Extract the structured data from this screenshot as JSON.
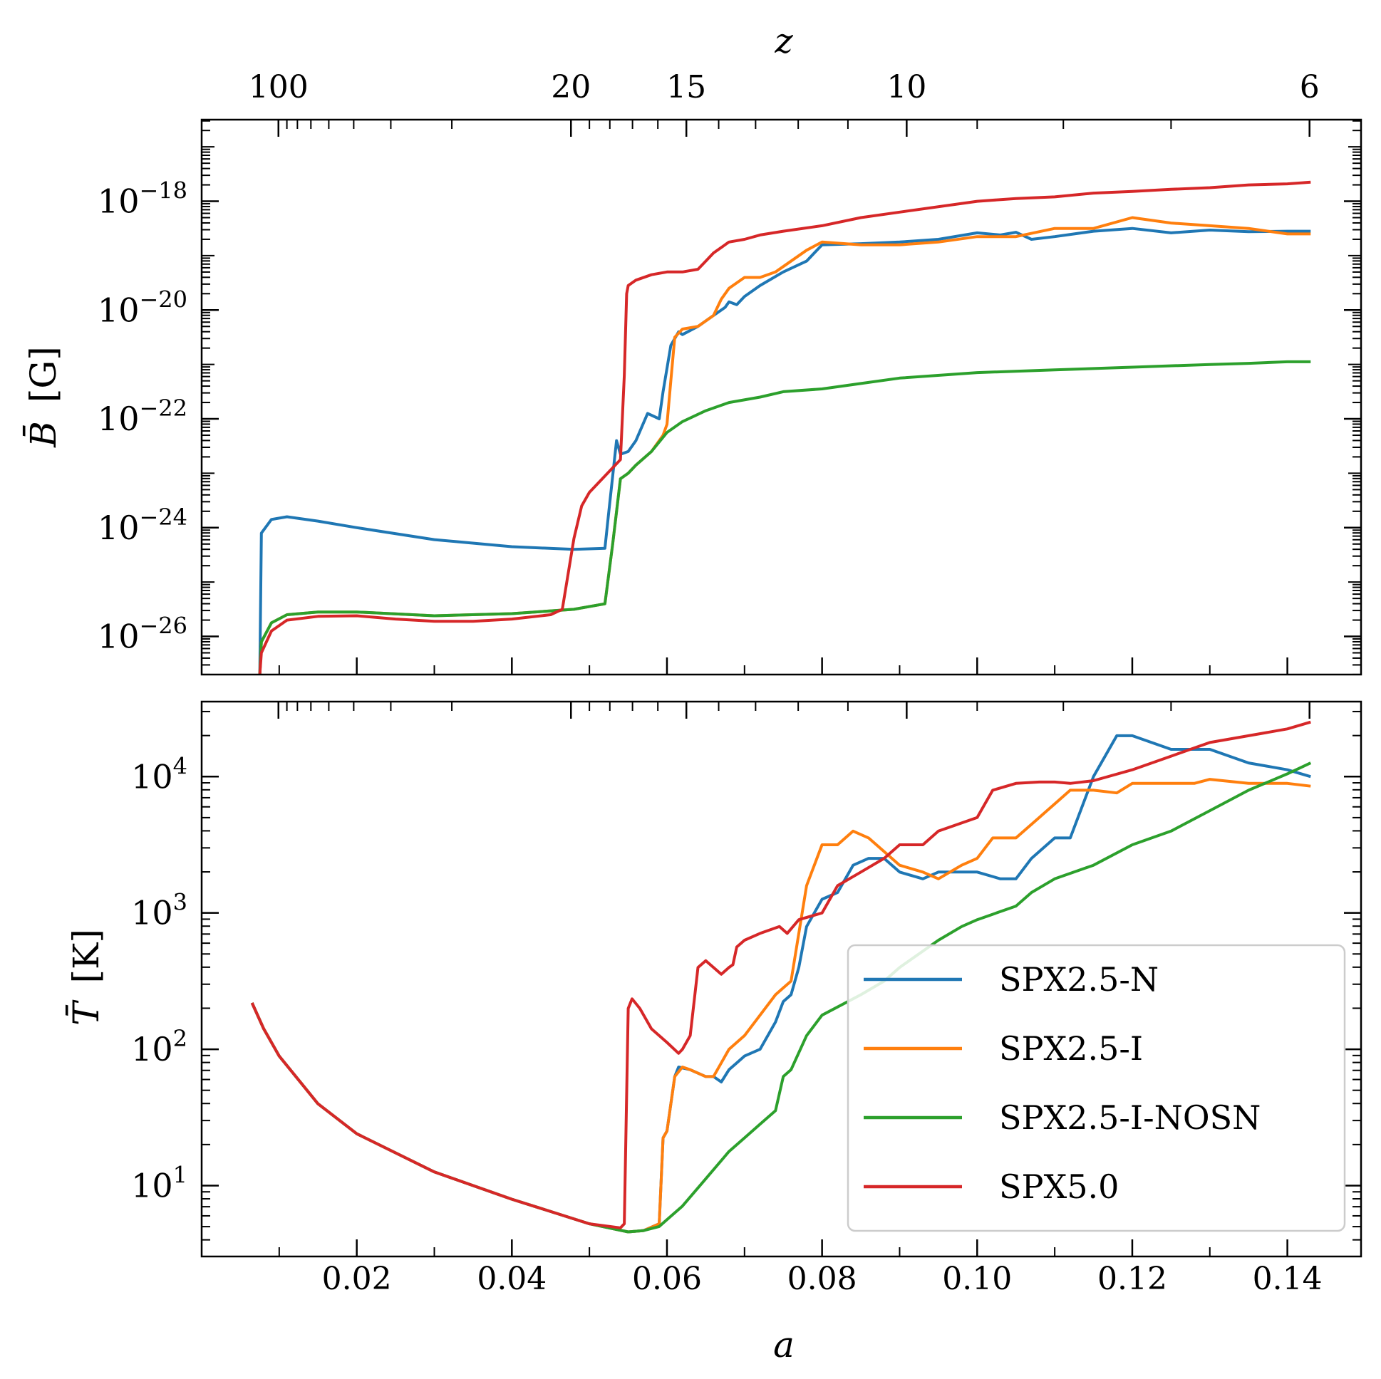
{
  "colors": {
    "SPX2.5-N": "#1f77b4",
    "SPX2.5-I": "#ff7f0e",
    "SPX2.5-I-NOSN": "#2ca02c",
    "SPX5.0": "#d62728"
  },
  "chart_data": [
    {
      "type": "line",
      "panel": "top",
      "ylabel_symbol": "B̄",
      "ylabel_unit": "[G]",
      "top_axis_label": "z",
      "top_ticks": [
        "100",
        "20",
        "15",
        "10",
        "6"
      ],
      "top_tick_values": [
        100,
        20,
        15,
        10,
        6
      ],
      "y_scale": "log",
      "y_ticks": [
        {
          "base": "10",
          "exp": "−18"
        },
        {
          "base": "10",
          "exp": "−20"
        },
        {
          "base": "10",
          "exp": "−22"
        },
        {
          "base": "10",
          "exp": "−24"
        },
        {
          "base": "10",
          "exp": "−26"
        }
      ],
      "y_tick_exponents": [
        -18,
        -20,
        -22,
        -24,
        -26
      ],
      "ylim_log10": [
        -26.7,
        -16.5
      ],
      "xlim": [
        0,
        0.1495
      ],
      "series": [
        {
          "name": "SPX2.5-N",
          "x": [
            0.0075,
            0.0077,
            0.009,
            0.011,
            0.015,
            0.02,
            0.03,
            0.04,
            0.048,
            0.052,
            0.0525,
            0.0535,
            0.054,
            0.055,
            0.056,
            0.0575,
            0.059,
            0.0595,
            0.0605,
            0.0615,
            0.062,
            0.064,
            0.066,
            0.0675,
            0.068,
            0.069,
            0.07,
            0.072,
            0.075,
            0.078,
            0.08,
            0.085,
            0.09,
            0.095,
            0.1,
            0.103,
            0.105,
            0.107,
            0.11,
            0.115,
            0.12,
            0.125,
            0.13,
            0.135,
            0.14,
            0.143
          ],
          "y": [
            -26.7,
            -24.1,
            -23.85,
            -23.8,
            -23.88,
            -24.0,
            -24.22,
            -24.35,
            -24.4,
            -24.38,
            -23.7,
            -22.4,
            -22.65,
            -22.6,
            -22.4,
            -21.9,
            -22.0,
            -21.5,
            -20.65,
            -20.4,
            -20.45,
            -20.3,
            -20.1,
            -19.95,
            -19.85,
            -19.9,
            -19.75,
            -19.55,
            -19.3,
            -19.1,
            -18.8,
            -18.78,
            -18.75,
            -18.7,
            -18.58,
            -18.62,
            -18.57,
            -18.7,
            -18.65,
            -18.55,
            -18.5,
            -18.58,
            -18.53,
            -18.56,
            -18.55,
            -18.55
          ]
        },
        {
          "name": "SPX2.5-I",
          "x": [
            0.0075,
            0.0077,
            0.009,
            0.011,
            0.015,
            0.02,
            0.03,
            0.04,
            0.048,
            0.052,
            0.053,
            0.054,
            0.055,
            0.056,
            0.058,
            0.0595,
            0.06,
            0.0605,
            0.061,
            0.062,
            0.064,
            0.066,
            0.067,
            0.068,
            0.07,
            0.072,
            0.074,
            0.075,
            0.078,
            0.08,
            0.085,
            0.09,
            0.095,
            0.1,
            0.105,
            0.11,
            0.115,
            0.12,
            0.125,
            0.13,
            0.135,
            0.14,
            0.143
          ],
          "y": [
            -26.7,
            -26.1,
            -25.75,
            -25.6,
            -25.55,
            -25.55,
            -25.62,
            -25.58,
            -25.5,
            -25.4,
            -24.3,
            -23.1,
            -23.0,
            -22.85,
            -22.6,
            -22.3,
            -22.1,
            -21.3,
            -20.5,
            -20.35,
            -20.3,
            -20.1,
            -19.8,
            -19.6,
            -19.4,
            -19.4,
            -19.3,
            -19.2,
            -18.9,
            -18.75,
            -18.8,
            -18.8,
            -18.75,
            -18.65,
            -18.65,
            -18.5,
            -18.5,
            -18.3,
            -18.4,
            -18.45,
            -18.5,
            -18.6,
            -18.6
          ]
        },
        {
          "name": "SPX2.5-I-NOSN",
          "x": [
            0.0075,
            0.0077,
            0.009,
            0.011,
            0.015,
            0.02,
            0.03,
            0.04,
            0.048,
            0.052,
            0.053,
            0.054,
            0.055,
            0.056,
            0.058,
            0.06,
            0.062,
            0.065,
            0.068,
            0.072,
            0.075,
            0.08,
            0.085,
            0.09,
            0.1,
            0.11,
            0.12,
            0.13,
            0.135,
            0.14,
            0.143
          ],
          "y": [
            -26.7,
            -26.1,
            -25.75,
            -25.6,
            -25.55,
            -25.55,
            -25.62,
            -25.58,
            -25.5,
            -25.4,
            -24.3,
            -23.1,
            -23.0,
            -22.85,
            -22.6,
            -22.25,
            -22.05,
            -21.85,
            -21.7,
            -21.6,
            -21.5,
            -21.45,
            -21.35,
            -21.25,
            -21.15,
            -21.1,
            -21.05,
            -21.0,
            -20.98,
            -20.95,
            -20.95
          ]
        },
        {
          "name": "SPX5.0",
          "x": [
            0.0075,
            0.0077,
            0.009,
            0.011,
            0.015,
            0.02,
            0.025,
            0.03,
            0.035,
            0.04,
            0.045,
            0.0465,
            0.048,
            0.049,
            0.05,
            0.052,
            0.053,
            0.054,
            0.0545,
            0.0548,
            0.055,
            0.056,
            0.058,
            0.06,
            0.062,
            0.064,
            0.065,
            0.066,
            0.068,
            0.07,
            0.072,
            0.075,
            0.08,
            0.085,
            0.09,
            0.1,
            0.105,
            0.11,
            0.115,
            0.12,
            0.125,
            0.13,
            0.135,
            0.14,
            0.143
          ],
          "y": [
            -26.7,
            -26.3,
            -25.9,
            -25.7,
            -25.63,
            -25.62,
            -25.68,
            -25.72,
            -25.72,
            -25.68,
            -25.6,
            -25.5,
            -24.2,
            -23.6,
            -23.35,
            -23.05,
            -22.9,
            -22.75,
            -21.2,
            -19.7,
            -19.55,
            -19.45,
            -19.35,
            -19.3,
            -19.3,
            -19.25,
            -19.1,
            -18.95,
            -18.75,
            -18.7,
            -18.62,
            -18.55,
            -18.45,
            -18.3,
            -18.2,
            -18.0,
            -17.95,
            -17.92,
            -17.85,
            -17.82,
            -17.78,
            -17.75,
            -17.7,
            -17.68,
            -17.65
          ]
        }
      ]
    },
    {
      "type": "line",
      "panel": "bottom",
      "xlabel": "a",
      "ylabel_symbol": "T̄",
      "ylabel_unit": "[K]",
      "x_ticks": [
        "0.02",
        "0.04",
        "0.06",
        "0.08",
        "0.10",
        "0.12",
        "0.14"
      ],
      "x_tick_values": [
        0.02,
        0.04,
        0.06,
        0.08,
        0.1,
        0.12,
        0.14
      ],
      "y_scale": "log",
      "y_ticks": [
        {
          "base": "10",
          "exp": "4"
        },
        {
          "base": "10",
          "exp": "3"
        },
        {
          "base": "10",
          "exp": "2"
        },
        {
          "base": "10",
          "exp": "1"
        }
      ],
      "y_tick_exponents": [
        4,
        3,
        2,
        1
      ],
      "ylim_log10": [
        0.48,
        4.55
      ],
      "xlim": [
        0,
        0.1495
      ],
      "series": [
        {
          "name": "SPX2.5-N",
          "x": [
            0.0065,
            0.008,
            0.01,
            0.015,
            0.02,
            0.03,
            0.04,
            0.05,
            0.055,
            0.057,
            0.059,
            0.0595,
            0.06,
            0.061,
            0.0615,
            0.063,
            0.065,
            0.066,
            0.067,
            0.068,
            0.069,
            0.07,
            0.072,
            0.074,
            0.075,
            0.076,
            0.077,
            0.078,
            0.08,
            0.082,
            0.084,
            0.086,
            0.088,
            0.09,
            0.093,
            0.095,
            0.1,
            0.103,
            0.105,
            0.107,
            0.11,
            0.112,
            0.115,
            0.118,
            0.12,
            0.125,
            0.13,
            0.135,
            0.14,
            0.143
          ],
          "y": [
            2.34,
            2.15,
            1.95,
            1.6,
            1.38,
            1.1,
            0.9,
            0.72,
            0.66,
            0.67,
            0.72,
            1.35,
            1.4,
            1.8,
            1.87,
            1.85,
            1.8,
            1.8,
            1.76,
            1.85,
            1.9,
            1.95,
            2.0,
            2.2,
            2.35,
            2.4,
            2.6,
            2.9,
            3.1,
            3.15,
            3.35,
            3.4,
            3.4,
            3.3,
            3.25,
            3.3,
            3.3,
            3.25,
            3.25,
            3.4,
            3.55,
            3.55,
            4.0,
            4.3,
            4.3,
            4.2,
            4.2,
            4.1,
            4.05,
            4.0
          ]
        },
        {
          "name": "SPX2.5-I",
          "x": [
            0.0065,
            0.008,
            0.01,
            0.015,
            0.02,
            0.03,
            0.04,
            0.05,
            0.055,
            0.057,
            0.059,
            0.0595,
            0.06,
            0.061,
            0.062,
            0.063,
            0.065,
            0.066,
            0.067,
            0.068,
            0.07,
            0.072,
            0.074,
            0.075,
            0.076,
            0.078,
            0.08,
            0.082,
            0.084,
            0.086,
            0.088,
            0.09,
            0.093,
            0.095,
            0.098,
            0.1,
            0.102,
            0.105,
            0.108,
            0.11,
            0.112,
            0.115,
            0.118,
            0.12,
            0.125,
            0.128,
            0.13,
            0.135,
            0.14,
            0.143
          ],
          "y": [
            2.34,
            2.15,
            1.95,
            1.6,
            1.38,
            1.1,
            0.9,
            0.72,
            0.66,
            0.67,
            0.72,
            1.35,
            1.4,
            1.8,
            1.87,
            1.85,
            1.8,
            1.8,
            1.9,
            2.0,
            2.1,
            2.25,
            2.4,
            2.45,
            2.5,
            3.2,
            3.5,
            3.5,
            3.6,
            3.55,
            3.45,
            3.35,
            3.3,
            3.25,
            3.35,
            3.4,
            3.55,
            3.55,
            3.7,
            3.8,
            3.9,
            3.9,
            3.88,
            3.95,
            3.95,
            3.95,
            3.98,
            3.95,
            3.95,
            3.93
          ]
        },
        {
          "name": "SPX2.5-I-NOSN",
          "x": [
            0.0065,
            0.008,
            0.01,
            0.015,
            0.02,
            0.03,
            0.04,
            0.05,
            0.055,
            0.057,
            0.059,
            0.06,
            0.062,
            0.065,
            0.068,
            0.07,
            0.072,
            0.074,
            0.075,
            0.076,
            0.078,
            0.08,
            0.085,
            0.088,
            0.09,
            0.095,
            0.098,
            0.1,
            0.105,
            0.107,
            0.11,
            0.115,
            0.12,
            0.125,
            0.13,
            0.135,
            0.14,
            0.143
          ],
          "y": [
            2.34,
            2.15,
            1.95,
            1.6,
            1.38,
            1.1,
            0.9,
            0.72,
            0.66,
            0.67,
            0.7,
            0.75,
            0.85,
            1.05,
            1.25,
            1.35,
            1.45,
            1.55,
            1.8,
            1.85,
            2.1,
            2.25,
            2.4,
            2.5,
            2.6,
            2.8,
            2.9,
            2.95,
            3.05,
            3.15,
            3.25,
            3.35,
            3.5,
            3.6,
            3.75,
            3.9,
            4.02,
            4.1
          ]
        },
        {
          "name": "SPX5.0",
          "x": [
            0.0065,
            0.008,
            0.01,
            0.015,
            0.02,
            0.03,
            0.04,
            0.05,
            0.054,
            0.0545,
            0.055,
            0.0555,
            0.0565,
            0.058,
            0.06,
            0.0615,
            0.062,
            0.063,
            0.064,
            0.065,
            0.066,
            0.067,
            0.068,
            0.0685,
            0.069,
            0.07,
            0.072,
            0.0745,
            0.0755,
            0.077,
            0.08,
            0.082,
            0.085,
            0.088,
            0.09,
            0.093,
            0.095,
            0.1,
            0.102,
            0.105,
            0.108,
            0.11,
            0.112,
            0.115,
            0.12,
            0.125,
            0.13,
            0.135,
            0.14,
            0.143
          ],
          "y": [
            2.34,
            2.15,
            1.95,
            1.6,
            1.38,
            1.1,
            0.9,
            0.72,
            0.69,
            0.72,
            2.3,
            2.37,
            2.3,
            2.15,
            2.05,
            1.97,
            2.0,
            2.1,
            2.6,
            2.65,
            2.6,
            2.55,
            2.6,
            2.62,
            2.75,
            2.8,
            2.85,
            2.9,
            2.85,
            2.95,
            3.0,
            3.2,
            3.3,
            3.4,
            3.5,
            3.5,
            3.6,
            3.7,
            3.9,
            3.95,
            3.96,
            3.96,
            3.95,
            3.97,
            4.05,
            4.15,
            4.25,
            4.3,
            4.35,
            4.4
          ]
        }
      ]
    }
  ]
}
